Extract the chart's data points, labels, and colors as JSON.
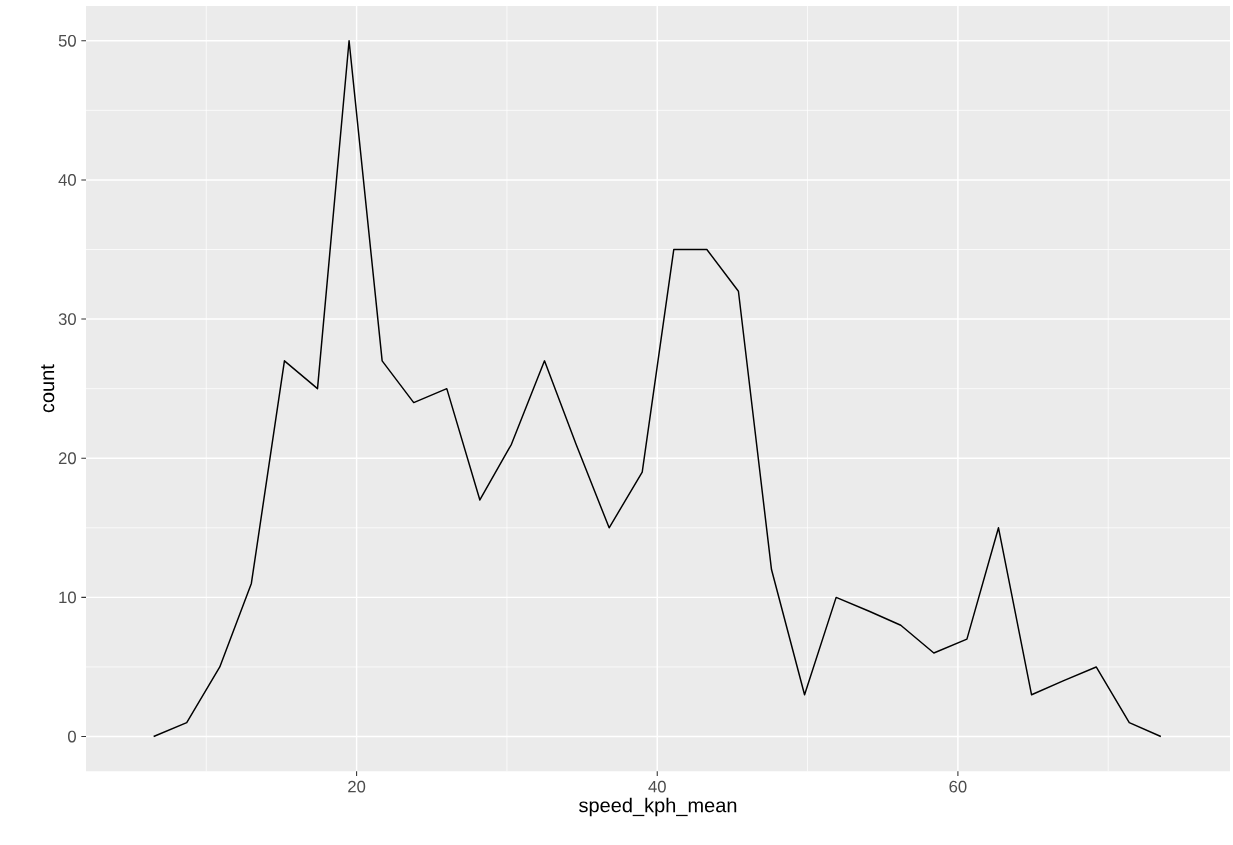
{
  "chart_data": {
    "type": "line",
    "xlabel": "speed_kph_mean",
    "ylabel": "count",
    "x": [
      6.5,
      8.7,
      10.9,
      13.0,
      15.2,
      17.4,
      19.5,
      21.7,
      23.8,
      26.0,
      28.2,
      30.3,
      32.5,
      34.6,
      36.8,
      39.0,
      41.1,
      43.3,
      45.4,
      47.6,
      49.8,
      51.9,
      54.1,
      56.2,
      58.4,
      60.6,
      62.7,
      64.9,
      67.0,
      69.2,
      71.4,
      73.5
    ],
    "values": [
      0,
      1,
      5,
      11,
      27,
      25,
      50,
      27,
      24,
      25,
      17,
      21,
      27,
      21,
      15,
      19,
      35,
      35,
      32,
      12,
      3,
      10,
      9,
      8,
      6,
      7,
      15,
      3,
      4,
      5,
      1,
      0
    ],
    "color": "#000000",
    "xlim": [
      2.0,
      78.1
    ],
    "ylim": [
      -2.5,
      52.5
    ],
    "xticks": [
      20,
      40,
      60
    ],
    "yticks": [
      0,
      10,
      20,
      30,
      40,
      50
    ],
    "grid": true,
    "marker": "none",
    "line_style": "solid"
  }
}
